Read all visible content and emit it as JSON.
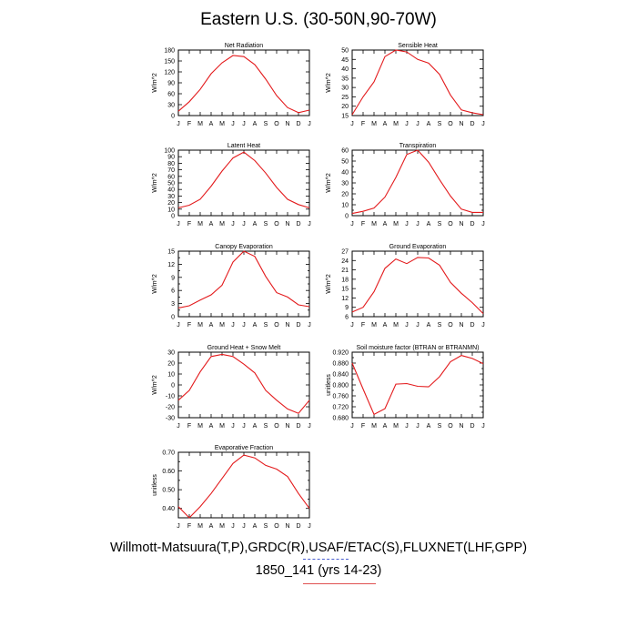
{
  "title": "Eastern U.S. (30-50N,90-70W)",
  "footer": {
    "line1": "Willmott-Matsuura(T,P),GRDC(R),USAF/ETAC(S),FLUXNET(LHF,GPP)",
    "line2": "1850_141 (yrs 14-23)"
  },
  "colors": {
    "line": "#e31a1c",
    "axis": "#000000"
  },
  "chart_data": [
    {
      "type": "line",
      "title": "Net Radiation",
      "ylabel": "W/m^2",
      "categories": [
        "J",
        "F",
        "M",
        "A",
        "M",
        "J",
        "J",
        "A",
        "S",
        "O",
        "N",
        "D",
        "J"
      ],
      "ylim": [
        0,
        180
      ],
      "yticks": [
        0,
        30,
        60,
        90,
        120,
        150,
        180
      ],
      "ytick_labels": [
        "0",
        "30",
        "60",
        "90",
        "120",
        "150",
        "180"
      ],
      "values": [
        12,
        38,
        72,
        115,
        145,
        165,
        162,
        140,
        100,
        55,
        22,
        8,
        15
      ]
    },
    {
      "type": "line",
      "title": "Sensible Heat",
      "ylabel": "W/m^2",
      "categories": [
        "J",
        "F",
        "M",
        "A",
        "M",
        "J",
        "J",
        "A",
        "S",
        "O",
        "N",
        "D",
        "J"
      ],
      "ylim": [
        15,
        50
      ],
      "yticks": [
        15,
        20,
        25,
        30,
        35,
        40,
        45,
        50
      ],
      "ytick_labels": [
        "15",
        "20",
        "25",
        "30",
        "35",
        "40",
        "45",
        "50"
      ],
      "values": [
        15.5,
        25,
        33,
        46.5,
        50,
        49,
        45,
        43,
        37,
        26,
        18,
        16.5,
        15.5
      ]
    },
    {
      "type": "line",
      "title": "Latent Heat",
      "ylabel": "W/m^2",
      "categories": [
        "J",
        "F",
        "M",
        "A",
        "M",
        "J",
        "J",
        "A",
        "S",
        "O",
        "N",
        "D",
        "J"
      ],
      "ylim": [
        0,
        100
      ],
      "yticks": [
        0,
        10,
        20,
        30,
        40,
        50,
        60,
        70,
        80,
        90,
        100
      ],
      "ytick_labels": [
        "0",
        "10",
        "20",
        "30",
        "40",
        "50",
        "60",
        "70",
        "80",
        "90",
        "100"
      ],
      "values": [
        12,
        16,
        25,
        45,
        68,
        88,
        97,
        84,
        65,
        43,
        25,
        17,
        12
      ]
    },
    {
      "type": "line",
      "title": "Transpiration",
      "ylabel": "W/m^2",
      "categories": [
        "J",
        "F",
        "M",
        "A",
        "M",
        "J",
        "J",
        "A",
        "S",
        "O",
        "N",
        "D",
        "J"
      ],
      "ylim": [
        0,
        60
      ],
      "yticks": [
        0,
        5,
        10,
        15,
        20,
        25,
        30,
        35,
        40,
        45,
        50,
        55,
        60
      ],
      "ytick_labels": [
        "0",
        "",
        "10",
        "",
        "20",
        "",
        "30",
        "",
        "40",
        "",
        "50",
        "",
        "60"
      ],
      "values": [
        2,
        4,
        7,
        17,
        35,
        56,
        60,
        49,
        33,
        18,
        6,
        3,
        3
      ]
    },
    {
      "type": "line",
      "title": "Canopy Evaporation",
      "ylabel": "W/m^2",
      "categories": [
        "J",
        "F",
        "M",
        "A",
        "M",
        "J",
        "J",
        "A",
        "S",
        "O",
        "N",
        "D",
        "J"
      ],
      "ylim": [
        0,
        15
      ],
      "yticks": [
        0,
        1.5,
        3,
        4.5,
        6,
        7.5,
        9,
        10.5,
        12,
        13.5,
        15
      ],
      "ytick_labels": [
        "0",
        "",
        "3",
        "",
        "6",
        "",
        "9",
        "",
        "12",
        "",
        "15"
      ],
      "values": [
        2,
        2.5,
        3.8,
        5,
        7.2,
        12.5,
        15,
        13.8,
        9.2,
        5.5,
        4.5,
        2.7,
        2.3
      ]
    },
    {
      "type": "line",
      "title": "Ground Evaporation",
      "ylabel": "W/m^2",
      "categories": [
        "J",
        "F",
        "M",
        "A",
        "M",
        "J",
        "J",
        "A",
        "S",
        "O",
        "N",
        "D",
        "J"
      ],
      "ylim": [
        6,
        27
      ],
      "yticks": [
        6,
        9,
        12,
        15,
        18,
        21,
        24,
        27
      ],
      "ytick_labels": [
        "6",
        "9",
        "12",
        "15",
        "18",
        "21",
        "24",
        "27"
      ],
      "values": [
        7.5,
        9,
        14,
        21.5,
        24.5,
        23,
        25,
        24.8,
        22.5,
        17,
        13.5,
        10.5,
        7
      ]
    },
    {
      "type": "line",
      "title": "Ground Heat + Snow Melt",
      "ylabel": "W/m^2",
      "categories": [
        "J",
        "F",
        "M",
        "A",
        "M",
        "J",
        "J",
        "A",
        "S",
        "O",
        "N",
        "D",
        "J"
      ],
      "ylim": [
        -30,
        30
      ],
      "yticks": [
        -30,
        -20,
        -10,
        0,
        10,
        20,
        30
      ],
      "ytick_labels": [
        "-30",
        "-20",
        "-10",
        "0",
        "10",
        "20",
        "30"
      ],
      "values": [
        -14,
        -5,
        12,
        26,
        28,
        26,
        19,
        11,
        -5,
        -14,
        -22,
        -26,
        -14
      ]
    },
    {
      "type": "line",
      "title": "Soil moisture factor (BTRAN or BTRANMN)",
      "ylabel": "unitless",
      "categories": [
        "J",
        "F",
        "M",
        "A",
        "M",
        "J",
        "J",
        "A",
        "S",
        "O",
        "N",
        "D",
        "J"
      ],
      "ylim": [
        0.68,
        0.92
      ],
      "yticks": [
        0.68,
        0.7,
        0.72,
        0.74,
        0.76,
        0.78,
        0.8,
        0.82,
        0.84,
        0.86,
        0.88,
        0.9,
        0.92
      ],
      "ytick_labels": [
        "0.680",
        "",
        "0.720",
        "",
        "0.760",
        "",
        "0.800",
        "",
        "0.840",
        "",
        "0.880",
        "",
        "0.920"
      ],
      "values": [
        0.88,
        0.785,
        0.692,
        0.713,
        0.803,
        0.805,
        0.795,
        0.793,
        0.83,
        0.885,
        0.908,
        0.897,
        0.878
      ]
    },
    {
      "type": "line",
      "title": "Evaporative Fraction",
      "ylabel": "unitless",
      "categories": [
        "J",
        "F",
        "M",
        "A",
        "M",
        "J",
        "J",
        "A",
        "S",
        "O",
        "N",
        "D",
        "J"
      ],
      "ylim": [
        0.35,
        0.7
      ],
      "yticks": [
        0.35,
        0.4,
        0.45,
        0.5,
        0.55,
        0.6,
        0.65,
        0.7
      ],
      "ytick_labels": [
        "",
        "0.40",
        "",
        "0.50",
        "",
        "0.60",
        "",
        "0.70"
      ],
      "values": [
        0.41,
        0.35,
        0.41,
        0.48,
        0.56,
        0.64,
        0.685,
        0.67,
        0.63,
        0.61,
        0.57,
        0.48,
        0.4
      ]
    }
  ]
}
